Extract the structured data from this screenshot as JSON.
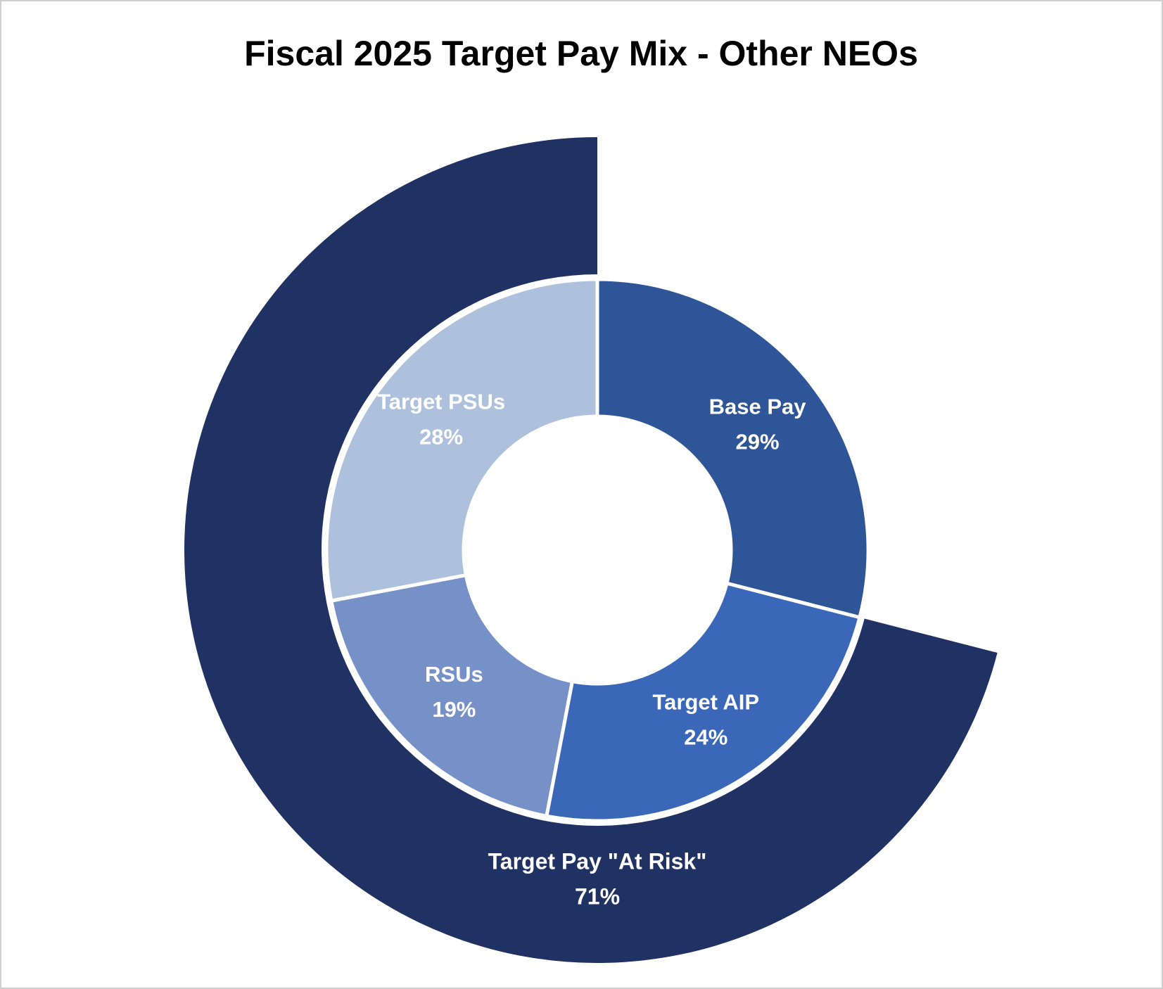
{
  "chart_data": {
    "type": "donut",
    "title": "Fiscal 2025 Target Pay Mix - Other NEOs",
    "inner": {
      "categories": [
        "Base Pay",
        "Target AIP",
        "RSUs",
        "Target PSUs"
      ],
      "values": [
        29,
        24,
        19,
        28
      ],
      "value_labels": [
        "29%",
        "24%",
        "19%",
        "28%"
      ],
      "colors": [
        "#2e5597",
        "#3a67b7",
        "#7691c8",
        "#adc0dc"
      ]
    },
    "outer": {
      "categories": [
        "Target Pay \"At Risk\""
      ],
      "values": [
        71
      ],
      "value_labels": [
        "71%"
      ],
      "colors": [
        "#203263"
      ]
    }
  }
}
